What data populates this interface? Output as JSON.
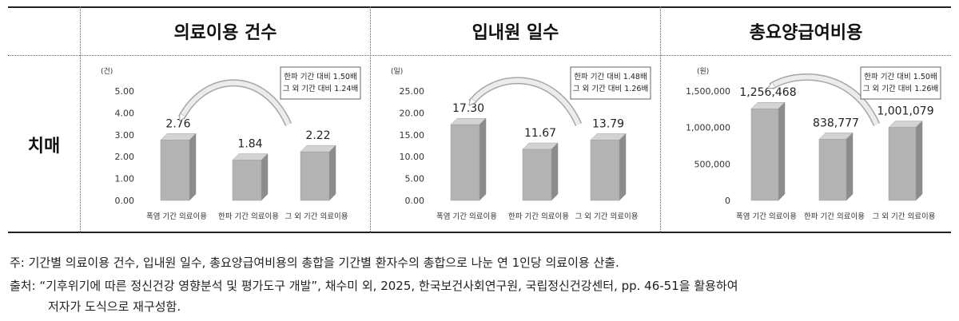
{
  "row_label": "치매",
  "chart_data": [
    {
      "type": "bar",
      "title": "의료이용 건수",
      "unit": "(건)",
      "ylim": [
        0,
        5
      ],
      "yticks": [
        "0.00",
        "1.00",
        "2.00",
        "3.00",
        "4.00",
        "5.00"
      ],
      "categories": [
        "폭염 기간 의료이용",
        "한파 기간 의료이용",
        "그 외 기간 의료이용"
      ],
      "values": [
        2.76,
        1.84,
        2.22
      ],
      "value_labels": [
        "2.76",
        "1.84",
        "2.22"
      ],
      "annotation": [
        "한파 기간 대비 1.50배",
        "그 외 기간 대비 1.24배"
      ]
    },
    {
      "type": "bar",
      "title": "입내원 일수",
      "unit": "(일)",
      "ylim": [
        0,
        25
      ],
      "yticks": [
        "0.00",
        "5.00",
        "10.00",
        "15.00",
        "20.00",
        "25.00"
      ],
      "categories": [
        "폭염 기간 의료이용",
        "한파 기간 의료이용",
        "그 외 기간 의료이용"
      ],
      "values": [
        17.3,
        11.67,
        13.79
      ],
      "value_labels": [
        "17.30",
        "11.67",
        "13.79"
      ],
      "annotation": [
        "한파 기간 대비 1.48배",
        "그 외 기간 대비 1.26배"
      ]
    },
    {
      "type": "bar",
      "title": "총요양급여비용",
      "unit": "(원)",
      "ylim": [
        0,
        1500000
      ],
      "yticks": [
        "0",
        "500,000",
        "1,000,000",
        "1,500,000"
      ],
      "categories": [
        "폭염 기간 의료이용",
        "한파 기간 의료이용",
        "그 외 기간 의료이용"
      ],
      "values": [
        1256468,
        838777,
        1001079
      ],
      "value_labels": [
        "1,256,468",
        "838,777",
        "1,001,079"
      ],
      "annotation": [
        "한파 기간 대비 1.50배",
        "그 외 기간 대비 1.26배"
      ]
    }
  ],
  "notes": {
    "note1": "주: 기간별 의료이용 건수, 입내원 일수, 총요양급여비용의 총합을 기간별 환자수의 총합으로 나눈 연 1인당 의료이용 산출.",
    "note2": "출처: “기후위기에 따른 정신건강 영향분석 및 평가도구 개발”, 채수미 외, 2025, 한국보건사회연구원, 국립정신건강센터, pp. 46-51을 활용하여",
    "note3": "저자가 도식으로 재구성함."
  }
}
